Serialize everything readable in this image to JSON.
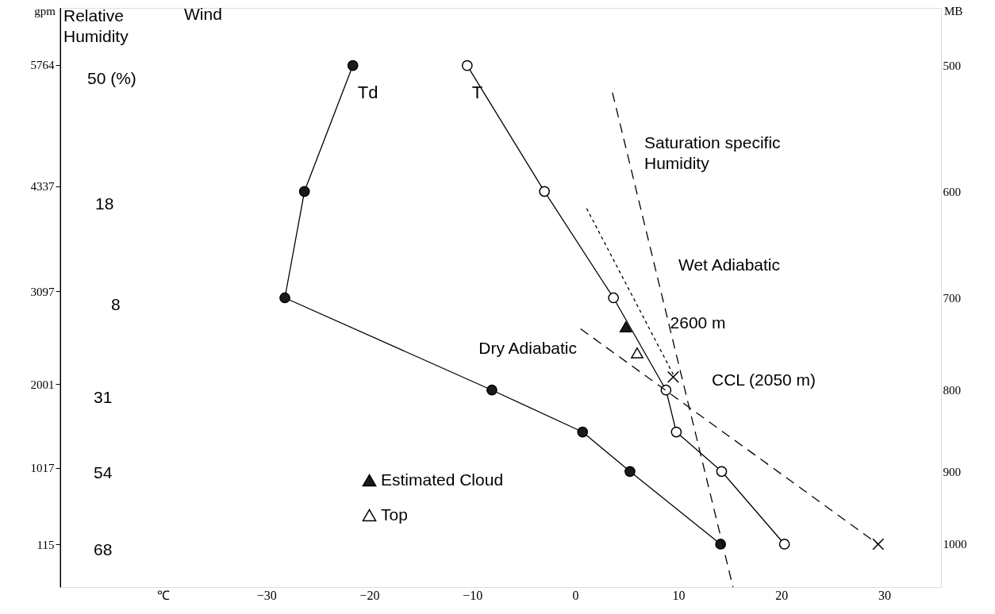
{
  "chart_data": {
    "type": "line",
    "ylabel": "MB",
    "y2label": "gpm",
    "xlim": [
      -50,
      35.5
    ],
    "xticks": [
      {
        "value": -40,
        "label": "℃"
      },
      -30,
      -20,
      -10,
      0,
      10,
      20,
      30
    ],
    "ylim": [
      1064,
      460
    ],
    "log": "y",
    "yticks": [
      500,
      600,
      700,
      800,
      900,
      1000
    ],
    "y2lim": [
      -390,
      6437
    ],
    "y2ticks": [
      5764,
      4337,
      3097,
      2001,
      1017,
      115
    ],
    "grid": false,
    "legend": "bottom left",
    "series": [
      {
        "name": "Td",
        "marker": "circle",
        "line_style": "solid",
        "color": "#1a1a1a",
        "x": [
          -21.6,
          -26.3,
          -28.2,
          -8.1,
          0.7,
          5.3,
          14.1
        ],
        "values": [
          500,
          600,
          700,
          800,
          850,
          900,
          1000
        ]
      },
      {
        "name": "T",
        "marker": "circle",
        "line_style": "solid",
        "color": "#ffffff",
        "x": [
          -10.5,
          -3,
          3.7,
          8.8,
          9.8,
          14.2,
          20.3
        ],
        "values": [
          500,
          600,
          700,
          800,
          850,
          900,
          1000
        ]
      },
      {
        "marker": "none",
        "line_style": "dashed",
        "color": "#000000",
        "x": [
          3.6,
          15.3
        ],
        "values": [
          520,
          1064
        ]
      },
      {
        "marker": "none",
        "line_style": "dotted",
        "color": "#000000",
        "x": [
          1.1,
          9.5
        ],
        "values": [
          615,
          782
        ]
      },
      {
        "marker": "none",
        "line_style": "dashed",
        "color": "#000000",
        "x": [
          0.5,
          29.4
        ],
        "values": [
          732,
          1000
        ]
      },
      {
        "type": "scatter",
        "marker": "cross",
        "color": "#000000",
        "x": [
          9.5,
          29.4
        ],
        "values": [
          785,
          1000
        ]
      },
      {
        "name": "Estimated Cloud",
        "type": "scatter",
        "marker": "triangle",
        "color": "#1a1a1a",
        "x": [
          4.9
        ],
        "values": [
          730
        ]
      },
      {
        "name": "Top",
        "type": "scatter",
        "marker": "triangle",
        "color": "#ffffff",
        "x": [
          6.0
        ],
        "values": [
          758
        ]
      }
    ],
    "annotations": [
      "Relative\nHumidity",
      "Wind",
      "50 (%)",
      "18",
      "8",
      "31",
      "54",
      "68",
      "Saturation specific\nHumidity",
      "Wet Adiabatic",
      {
        "text": "2600 m",
        "x": 9.2,
        "y": 727
      },
      "Dry Adiabatic",
      "CCL (2050 m)"
    ]
  }
}
